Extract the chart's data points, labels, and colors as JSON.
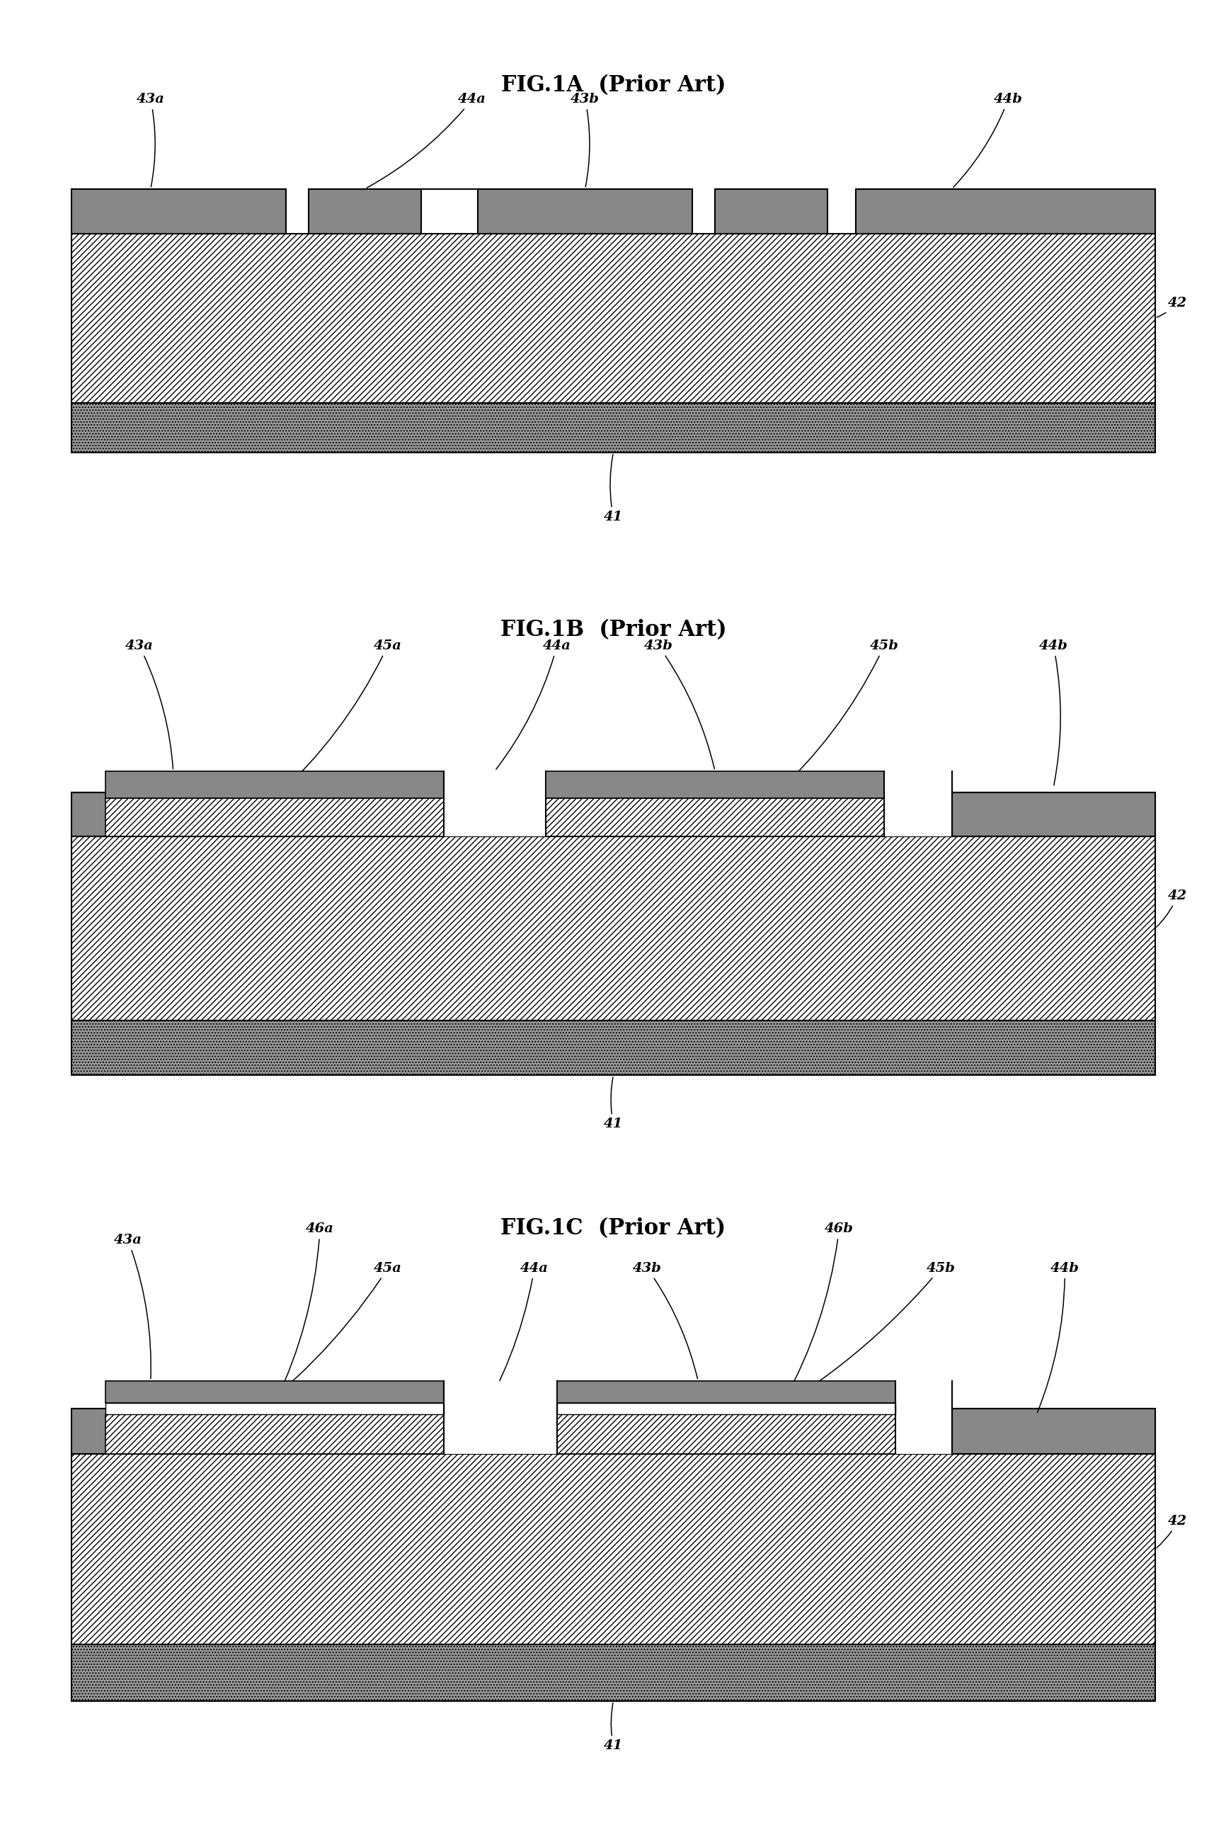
{
  "fig_titles": [
    "FIG.1A  (Prior Art)",
    "FIG.1B  (Prior Art)",
    "FIG.1C  (Prior Art)"
  ],
  "bg_color": "#ffffff",
  "pad_color": "#888888",
  "substrate_hatch": "////",
  "bottom_layer_color": "#aaaaaa",
  "black": "#000000",
  "white": "#ffffff"
}
